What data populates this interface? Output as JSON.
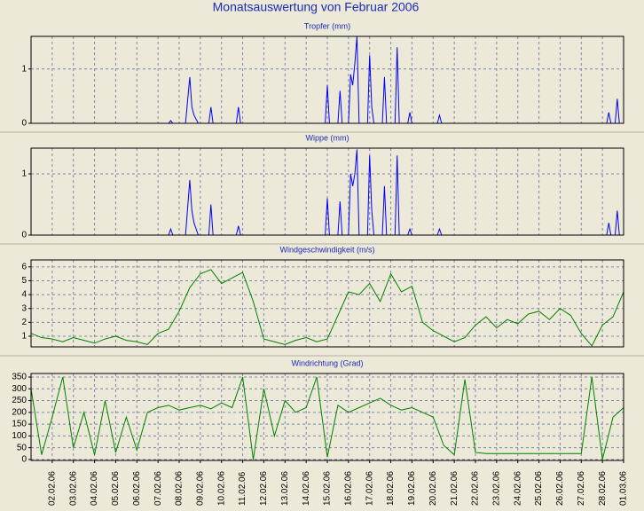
{
  "title": "Monatsauswertung von Februar 2006",
  "chart_data": [
    {
      "type": "line",
      "title": "Tropfer (mm)",
      "color": "#0000ff",
      "grid": true,
      "xlim": [
        0,
        28
      ],
      "ylim": [
        0,
        1.6
      ],
      "yticks": [
        0,
        1
      ],
      "x": [
        0,
        6.5,
        6.6,
        6.7,
        7.3,
        7.5,
        7.6,
        7.7,
        7.9,
        8.4,
        8.5,
        8.6,
        9.7,
        9.8,
        9.9,
        13.9,
        14.0,
        14.1,
        14.5,
        14.6,
        14.7,
        15.0,
        15.1,
        15.2,
        15.3,
        15.4,
        15.5,
        15.9,
        16.0,
        16.1,
        16.2,
        16.6,
        16.7,
        16.8,
        17.2,
        17.3,
        17.4,
        17.8,
        17.9,
        18.0,
        19.2,
        19.3,
        19.4,
        27.2,
        27.3,
        27.4,
        27.6,
        27.7,
        27.8,
        28
      ],
      "values": [
        0,
        0,
        0.05,
        0,
        0,
        0.85,
        0.3,
        0.15,
        0,
        0,
        0.3,
        0,
        0,
        0.3,
        0,
        0,
        0.7,
        0,
        0,
        0.6,
        0,
        0,
        0.9,
        0.7,
        1.1,
        1.6,
        0,
        0,
        1.25,
        0.3,
        0,
        0,
        0.85,
        0,
        0,
        1.4,
        0,
        0,
        0.2,
        0,
        0,
        0.15,
        0,
        0,
        0.2,
        0,
        0,
        0.45,
        0,
        0
      ]
    },
    {
      "type": "line",
      "title": "Wippe (mm)",
      "color": "#0000ff",
      "grid": true,
      "xlim": [
        0,
        28
      ],
      "ylim": [
        0,
        1.42
      ],
      "yticks": [
        0,
        1
      ],
      "x": [
        0,
        6.5,
        6.6,
        6.7,
        7.3,
        7.5,
        7.6,
        7.7,
        7.9,
        8.4,
        8.5,
        8.6,
        9.7,
        9.8,
        9.9,
        13.9,
        14.0,
        14.1,
        14.5,
        14.6,
        14.7,
        15.0,
        15.1,
        15.2,
        15.3,
        15.4,
        15.5,
        15.9,
        16.0,
        16.1,
        16.2,
        16.6,
        16.7,
        16.8,
        17.2,
        17.3,
        17.4,
        17.8,
        17.9,
        18.0,
        19.2,
        19.3,
        19.4,
        27.2,
        27.3,
        27.4,
        27.6,
        27.7,
        27.8,
        28
      ],
      "values": [
        0,
        0,
        0.1,
        0,
        0,
        0.9,
        0.4,
        0.2,
        0,
        0,
        0.5,
        0,
        0,
        0.15,
        0,
        0,
        0.6,
        0,
        0,
        0.55,
        0,
        0,
        1.0,
        0.8,
        1.0,
        1.4,
        0,
        0,
        1.3,
        0.4,
        0,
        0,
        0.8,
        0,
        0,
        1.3,
        0,
        0,
        0.1,
        0,
        0,
        0.1,
        0,
        0,
        0.2,
        0,
        0,
        0.4,
        0,
        0
      ]
    },
    {
      "type": "line",
      "title": "Windgeschwindigkeit (m/s)",
      "color": "#008000",
      "grid": true,
      "xlim": [
        0,
        28
      ],
      "ylim": [
        0.23,
        6.5
      ],
      "yticks": [
        1,
        2,
        3,
        4,
        5,
        6
      ],
      "x": [
        0,
        0.5,
        1,
        1.5,
        2,
        2.5,
        3,
        3.5,
        4,
        4.5,
        5,
        5.5,
        6,
        6.5,
        7,
        7.5,
        8,
        8.5,
        9,
        9.5,
        10,
        10.5,
        11,
        11.5,
        12,
        12.5,
        13,
        13.5,
        14,
        14.5,
        15,
        15.5,
        16,
        16.5,
        17,
        17.5,
        18,
        18.5,
        19,
        19.5,
        20,
        20.5,
        21,
        21.5,
        22,
        22.5,
        23,
        23.5,
        24,
        24.5,
        25,
        25.5,
        26,
        26.5,
        27,
        27.5,
        28
      ],
      "values": [
        1.2,
        0.9,
        0.8,
        0.6,
        0.9,
        0.7,
        0.5,
        0.8,
        1.0,
        0.7,
        0.6,
        0.4,
        1.2,
        1.5,
        2.8,
        4.5,
        5.5,
        5.8,
        4.8,
        5.2,
        5.6,
        3.5,
        0.8,
        0.6,
        0.4,
        0.7,
        0.9,
        0.6,
        0.8,
        2.5,
        4.2,
        4.0,
        4.8,
        3.5,
        5.5,
        4.2,
        4.6,
        2.0,
        1.4,
        1.0,
        0.6,
        0.9,
        1.8,
        2.4,
        1.6,
        2.2,
        1.9,
        2.6,
        2.8,
        2.2,
        3.0,
        2.5,
        1.2,
        0.3,
        1.8,
        2.4,
        4.2
      ]
    },
    {
      "type": "line",
      "title": "Windrichtung (Grad)",
      "color": "#008000",
      "grid": true,
      "xlim": [
        0,
        28
      ],
      "ylim": [
        -4,
        365
      ],
      "yticks": [
        0,
        50,
        100,
        150,
        200,
        250,
        300,
        350
      ],
      "x": [
        0,
        0.5,
        1,
        1.5,
        2,
        2.5,
        3,
        3.5,
        4,
        4.5,
        5,
        5.5,
        6,
        6.5,
        7,
        7.5,
        8,
        8.5,
        9,
        9.5,
        10,
        10.5,
        11,
        11.5,
        12,
        12.5,
        13,
        13.5,
        14,
        14.5,
        15,
        15.5,
        16,
        16.5,
        17,
        17.5,
        18,
        18.5,
        19,
        19.5,
        20,
        20.5,
        21,
        21.5,
        22,
        22.5,
        23,
        23.5,
        24,
        24.5,
        25,
        25.5,
        26,
        26.5,
        27,
        27.5,
        28
      ],
      "values": [
        300,
        20,
        180,
        350,
        50,
        200,
        20,
        250,
        30,
        180,
        40,
        200,
        220,
        230,
        210,
        220,
        230,
        215,
        240,
        220,
        350,
        0,
        300,
        100,
        250,
        200,
        220,
        350,
        10,
        230,
        200,
        220,
        240,
        260,
        230,
        210,
        220,
        200,
        180,
        60,
        20,
        340,
        30,
        25,
        25,
        25,
        25,
        25,
        25,
        25,
        25,
        25,
        25,
        350,
        0,
        180,
        220
      ],
      "xticks": [
        {
          "value": 1,
          "label": "02.02.06"
        },
        {
          "value": 2,
          "label": "03.02.06"
        },
        {
          "value": 3,
          "label": "04.02.06"
        },
        {
          "value": 4,
          "label": "05.02.06"
        },
        {
          "value": 5,
          "label": "06.02.06"
        },
        {
          "value": 6,
          "label": "07.02.06"
        },
        {
          "value": 7,
          "label": "08.02.06"
        },
        {
          "value": 8,
          "label": "09.02.06"
        },
        {
          "value": 9,
          "label": "10.02.06"
        },
        {
          "value": 10,
          "label": "11.02.06"
        },
        {
          "value": 11,
          "label": "12.02.06"
        },
        {
          "value": 12,
          "label": "13.02.06"
        },
        {
          "value": 13,
          "label": "14.02.06"
        },
        {
          "value": 14,
          "label": "15.02.06"
        },
        {
          "value": 15,
          "label": "16.02.06"
        },
        {
          "value": 16,
          "label": "17.02.06"
        },
        {
          "value": 17,
          "label": "18.02.06"
        },
        {
          "value": 18,
          "label": "19.02.06"
        },
        {
          "value": 19,
          "label": "20.02.06"
        },
        {
          "value": 20,
          "label": "21.02.06"
        },
        {
          "value": 21,
          "label": "22.02.06"
        },
        {
          "value": 22,
          "label": "23.02.06"
        },
        {
          "value": 23,
          "label": "24.02.06"
        },
        {
          "value": 24,
          "label": "25.02.06"
        },
        {
          "value": 25,
          "label": "26.02.06"
        },
        {
          "value": 26,
          "label": "27.02.06"
        },
        {
          "value": 27,
          "label": "28.02.06"
        },
        {
          "value": 28,
          "label": "01.03.06"
        }
      ]
    }
  ]
}
